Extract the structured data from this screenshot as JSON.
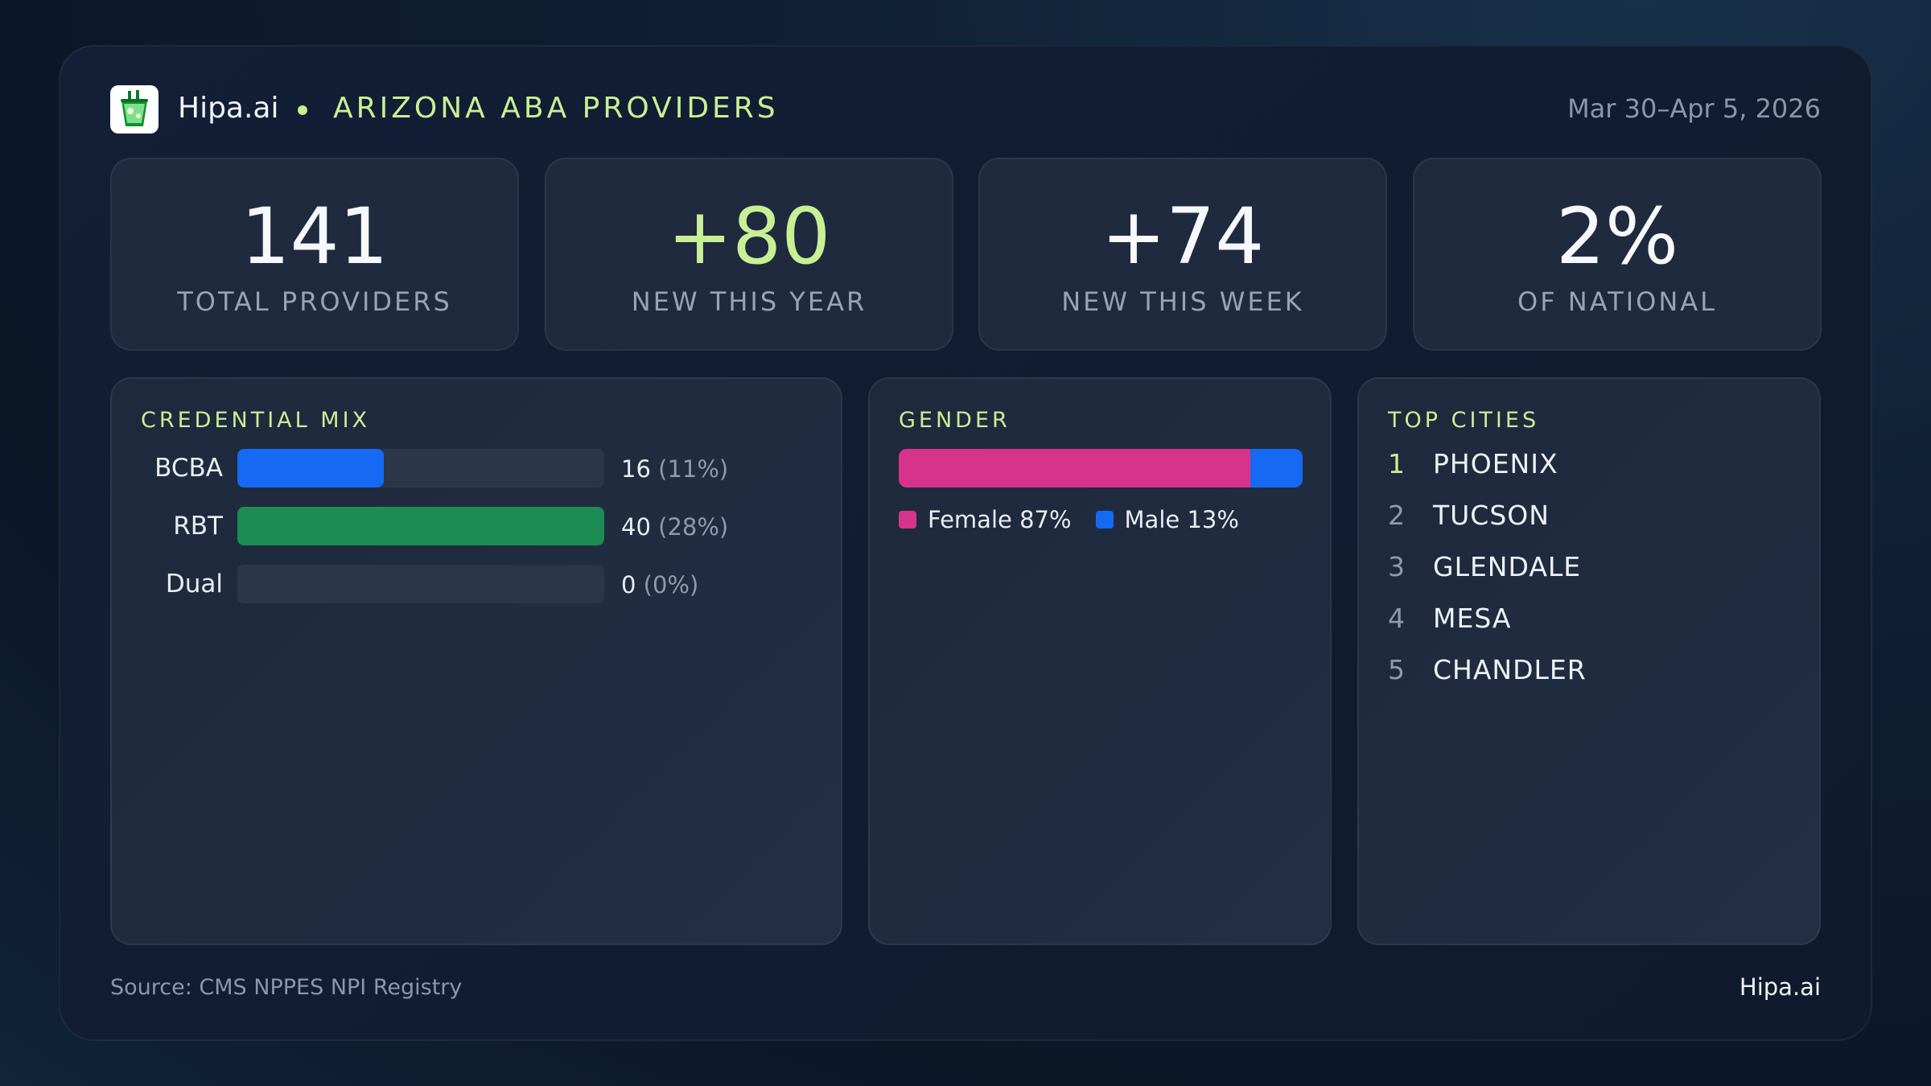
{
  "header": {
    "brand": "Hipa.ai",
    "title": "ARIZONA ABA PROVIDERS",
    "date_range": "Mar 30–Apr 5, 2026",
    "logo_icon": "cup-icon"
  },
  "stats": [
    {
      "value": "141",
      "label": "TOTAL PROVIDERS"
    },
    {
      "value": "+80",
      "label": "NEW THIS YEAR"
    },
    {
      "value": "+74",
      "label": "NEW THIS WEEK"
    },
    {
      "value": "2%",
      "label": "OF NATIONAL"
    }
  ],
  "credential_mix": {
    "title": "CREDENTIAL MIX",
    "rows": [
      {
        "label": "BCBA",
        "count": "16",
        "pct": "(11%)",
        "fraction": 0.4,
        "color": "#1669f2"
      },
      {
        "label": "RBT",
        "count": "40",
        "pct": "(28%)",
        "fraction": 1.0,
        "color": "#1d8c54"
      },
      {
        "label": "Dual",
        "count": "0",
        "pct": "(0%)",
        "fraction": 0.0,
        "color": "#2b3648"
      }
    ]
  },
  "gender": {
    "title": "GENDER",
    "female_label": "Female 87%",
    "male_label": "Male 13%",
    "female_fraction": 0.87,
    "male_fraction": 0.13,
    "female_color": "#d6348a",
    "male_color": "#1669f2"
  },
  "top_cities": {
    "title": "TOP CITIES",
    "items": [
      {
        "rank": "1",
        "name": "PHOENIX"
      },
      {
        "rank": "2",
        "name": "TUCSON"
      },
      {
        "rank": "3",
        "name": "GLENDALE"
      },
      {
        "rank": "4",
        "name": "MESA"
      },
      {
        "rank": "5",
        "name": "CHANDLER"
      }
    ]
  },
  "footer": {
    "source": "Source: CMS NPPES NPI Registry",
    "brand": "Hipa.ai"
  },
  "colors": {
    "accent": "#c9ef94",
    "card": "#1f2a3e"
  }
}
